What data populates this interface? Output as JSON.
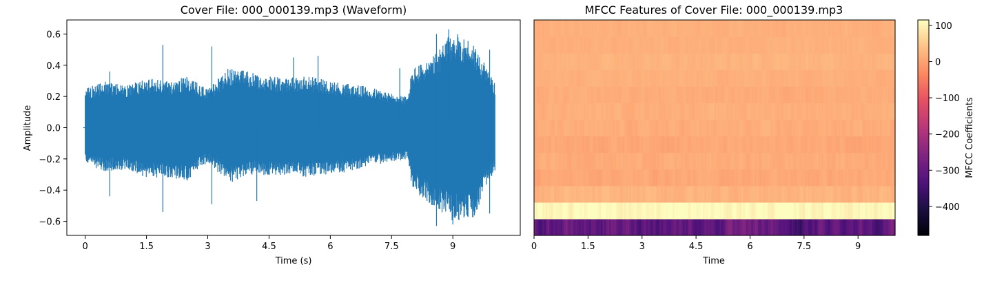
{
  "chart_data": [
    {
      "type": "line",
      "title": "Cover File: 000_000139.mp3 (Waveform)",
      "xlabel": "Time (s)",
      "ylabel": "Amplitude",
      "xlim": [
        -0.45,
        10.65
      ],
      "ylim": [
        -0.69,
        0.69
      ],
      "xticks": [
        0,
        1.5,
        3,
        4.5,
        6,
        7.5,
        9
      ],
      "xtick_labels": [
        "0",
        "1.5",
        "3",
        "4.5",
        "6",
        "7.5",
        "9"
      ],
      "yticks": [
        0.6,
        0.4,
        0.2,
        0.0,
        -0.2,
        -0.4,
        -0.6
      ],
      "ytick_labels": [
        "0.6",
        "0.4",
        "0.2",
        "0.0",
        "−0.2",
        "−0.4",
        "−0.6"
      ],
      "color": "#1f77b4",
      "grid": false,
      "duration": 10.03,
      "envelope": {
        "time": [
          0,
          0.5,
          1.0,
          1.5,
          2.0,
          2.5,
          3.0,
          3.5,
          4.0,
          4.5,
          5.0,
          5.5,
          6.0,
          6.5,
          7.0,
          7.5,
          7.9,
          8.0,
          8.5,
          9.0,
          9.5,
          10.0
        ],
        "upper": [
          0.25,
          0.3,
          0.27,
          0.32,
          0.3,
          0.33,
          0.25,
          0.38,
          0.36,
          0.33,
          0.32,
          0.33,
          0.3,
          0.28,
          0.26,
          0.22,
          0.2,
          0.38,
          0.45,
          0.62,
          0.55,
          0.3
        ],
        "lower": [
          -0.24,
          -0.28,
          -0.27,
          -0.32,
          -0.32,
          -0.34,
          -0.22,
          -0.36,
          -0.3,
          -0.31,
          -0.3,
          -0.32,
          -0.3,
          -0.28,
          -0.24,
          -0.22,
          -0.2,
          -0.4,
          -0.5,
          -0.6,
          -0.58,
          -0.28
        ]
      },
      "peaks": [
        {
          "t": 0.6,
          "y": 0.36
        },
        {
          "t": 0.6,
          "y": -0.44
        },
        {
          "t": 1.9,
          "y": 0.53
        },
        {
          "t": 1.9,
          "y": -0.54
        },
        {
          "t": 3.1,
          "y": 0.52
        },
        {
          "t": 3.1,
          "y": -0.49
        },
        {
          "t": 4.2,
          "y": -0.47
        },
        {
          "t": 5.1,
          "y": 0.45
        },
        {
          "t": 5.7,
          "y": 0.46
        },
        {
          "t": 7.7,
          "y": 0.38
        },
        {
          "t": 8.6,
          "y": 0.6
        },
        {
          "t": 8.6,
          "y": -0.63
        },
        {
          "t": 8.9,
          "y": 0.63
        },
        {
          "t": 9.0,
          "y": -0.62
        },
        {
          "t": 9.9,
          "y": 0.5
        },
        {
          "t": 9.9,
          "y": -0.55
        }
      ]
    },
    {
      "type": "heatmap",
      "title": "MFCC Features of Cover File: 000_000139.mp3",
      "xlabel": "Time",
      "xlim": [
        0,
        10.03
      ],
      "xticks": [
        0,
        1.5,
        3,
        4.5,
        6,
        7.5,
        9
      ],
      "xtick_labels": [
        "0",
        "1.5",
        "3",
        "4.5",
        "6",
        "7.5",
        "9"
      ],
      "colormap": "magma",
      "n_coefficients": 13,
      "row_means": [
        -300,
        110,
        25,
        10,
        15,
        10,
        15,
        20,
        15,
        20,
        25,
        20,
        20
      ],
      "row_variation": [
        60,
        25,
        15,
        12,
        12,
        12,
        12,
        10,
        10,
        8,
        8,
        8,
        8
      ],
      "colorbar": {
        "label": "MFCC Coefficients",
        "vmin": -480,
        "vmax": 115,
        "ticks": [
          100,
          0,
          -100,
          -200,
          -300,
          -400
        ],
        "tick_labels": [
          "100",
          "0",
          "−100",
          "−200",
          "−300",
          "−400"
        ]
      }
    }
  ]
}
